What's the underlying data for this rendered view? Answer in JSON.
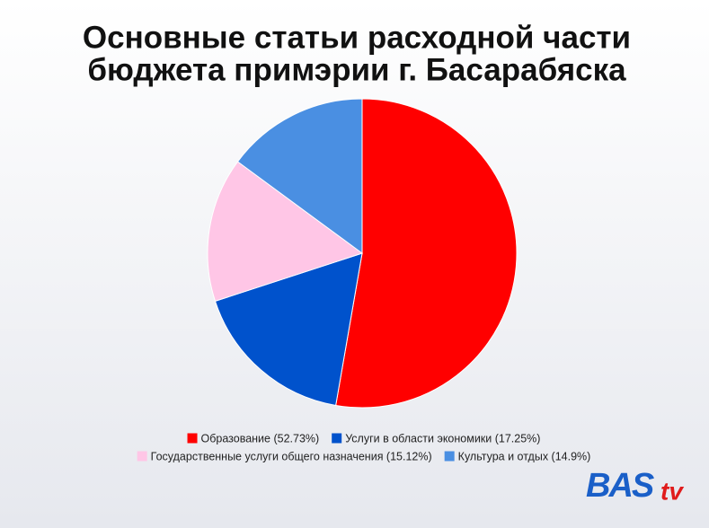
{
  "chart_data": {
    "type": "pie",
    "title": [
      "Основные статьи расходной части",
      "бюджета примэрии г. Басарабяска"
    ],
    "categories": [
      "Образование (52.73%)",
      "Услуги в области экономики (17.25%)",
      "Государственные услуги общего назначения (15.12%)",
      "Культура и отдых (14.9%)"
    ],
    "values": [
      52.73,
      17.25,
      15.12,
      14.9
    ],
    "colors": [
      "#ff0000",
      "#0052cc",
      "#ffc6e6",
      "#4a8fe2"
    ],
    "legend": "bottom"
  },
  "logo": {
    "main": "BAS",
    "suffix": "tv"
  }
}
